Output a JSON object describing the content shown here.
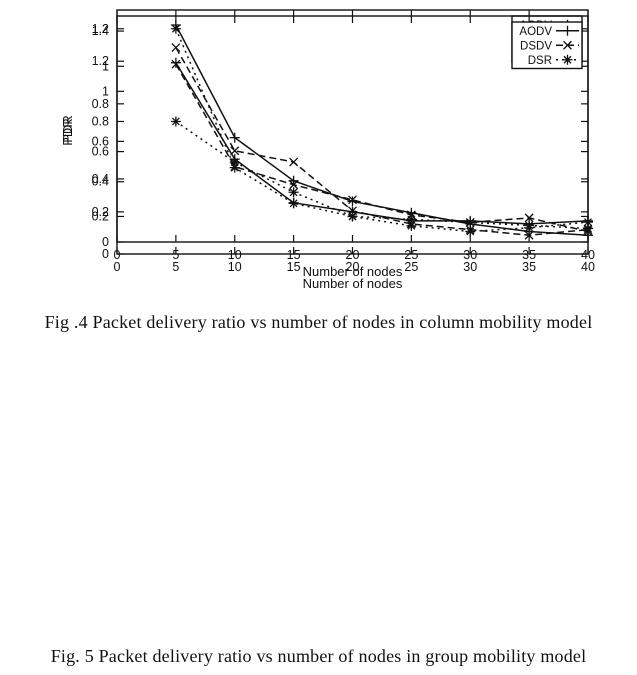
{
  "page": {
    "background": "#ffffff",
    "ink_color": "#111111"
  },
  "figures": [
    {
      "caption": "Fig .4 Packet delivery ratio vs number of nodes in column mobility model"
    },
    {
      "caption": "Fig. 5 Packet delivery ratio vs number of nodes in group mobility model"
    }
  ],
  "chart_data": [
    {
      "type": "line",
      "title": "",
      "xlabel": "Number of nodes",
      "ylabel": "PDR",
      "x": [
        5,
        10,
        15,
        20,
        25,
        30,
        35,
        40
      ],
      "xlim": [
        0,
        40
      ],
      "ylim": [
        0,
        1.3
      ],
      "xticks": [
        0,
        5,
        10,
        15,
        20,
        25,
        30,
        35,
        40
      ],
      "yticks": [
        0,
        0.2,
        0.4,
        0.6,
        0.8,
        1,
        1.2
      ],
      "grid": false,
      "legend_position": "top-right",
      "series": [
        {
          "name": "AODV",
          "line": "solid",
          "marker": "plus",
          "values": [
            1.22,
            0.62,
            0.39,
            0.28,
            0.22,
            0.16,
            0.12,
            0.1
          ]
        },
        {
          "name": "DSR",
          "line": "dashed",
          "marker": "cross",
          "values": [
            1.1,
            0.55,
            0.49,
            0.23,
            0.16,
            0.13,
            0.1,
            0.13
          ]
        },
        {
          "name": "DSDV",
          "line": "dotted",
          "marker": "asterisk",
          "values": [
            1.2,
            0.46,
            0.27,
            0.2,
            0.15,
            0.12,
            0.14,
            0.17
          ]
        }
      ]
    },
    {
      "type": "line",
      "title": "",
      "xlabel": "Number of nodes",
      "ylabel": "PDR",
      "x": [
        5,
        10,
        15,
        20,
        25,
        30,
        35,
        40
      ],
      "xlim": [
        0,
        40
      ],
      "ylim": [
        0,
        1.5
      ],
      "xticks": [
        0,
        5,
        10,
        15,
        20,
        25,
        30,
        35,
        40
      ],
      "yticks": [
        0,
        0.2,
        0.4,
        0.6,
        0.8,
        1,
        1.2,
        1.4
      ],
      "grid": false,
      "legend_position": "top-right",
      "series": [
        {
          "name": "AODV",
          "line": "solid",
          "marker": "plus",
          "values": [
            1.19,
            0.55,
            0.26,
            0.2,
            0.14,
            0.14,
            0.12,
            0.14
          ]
        },
        {
          "name": "DSDV",
          "line": "dashed",
          "marker": "cross",
          "values": [
            1.18,
            0.5,
            0.38,
            0.28,
            0.18,
            0.13,
            0.16,
            0.07
          ]
        },
        {
          "name": "DSR",
          "line": "dotted",
          "marker": "asterisk",
          "values": [
            0.8,
            0.53,
            0.33,
            0.17,
            0.15,
            0.13,
            0.11,
            0.09
          ]
        }
      ]
    }
  ]
}
